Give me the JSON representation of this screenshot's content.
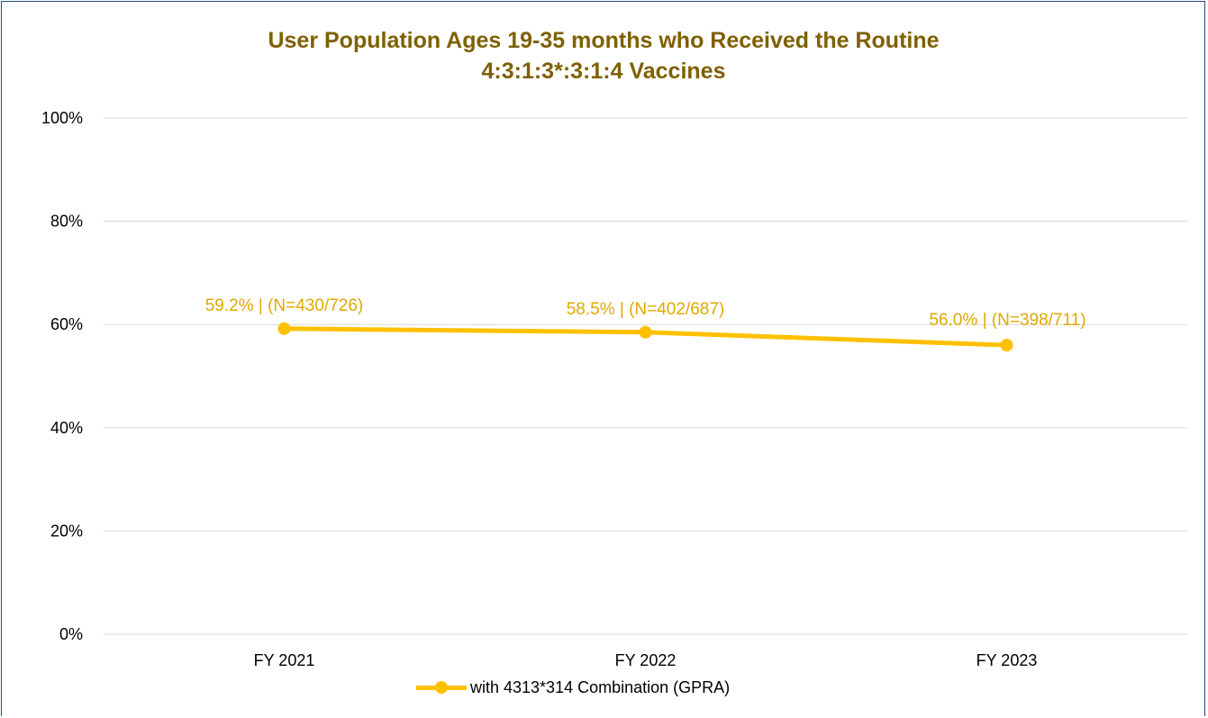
{
  "chart_data": {
    "type": "line",
    "title_lines": [
      "User Population Ages 19-35 months who Received the Routine",
      "4:3:1:3*:3:1:4 Vaccines"
    ],
    "categories": [
      "FY 2021",
      "FY 2022",
      "FY 2023"
    ],
    "series": [
      {
        "name": "with 4313*314 Combination (GPRA)",
        "values": [
          59.2,
          58.5,
          56.0
        ],
        "data_labels": [
          "59.2% | (N=430/726)",
          "58.5% | (N=402/687)",
          "56.0% | (N=398/711)"
        ],
        "color": "#ffc000"
      }
    ],
    "y_ticks": [
      "0%",
      "20%",
      "40%",
      "60%",
      "80%",
      "100%"
    ],
    "ylim": [
      0,
      100
    ],
    "grid": true,
    "legend_position": "bottom",
    "colors": {
      "title": "#7f6000",
      "data_label": "#e0a800",
      "grid": "#d9d9d9"
    }
  }
}
